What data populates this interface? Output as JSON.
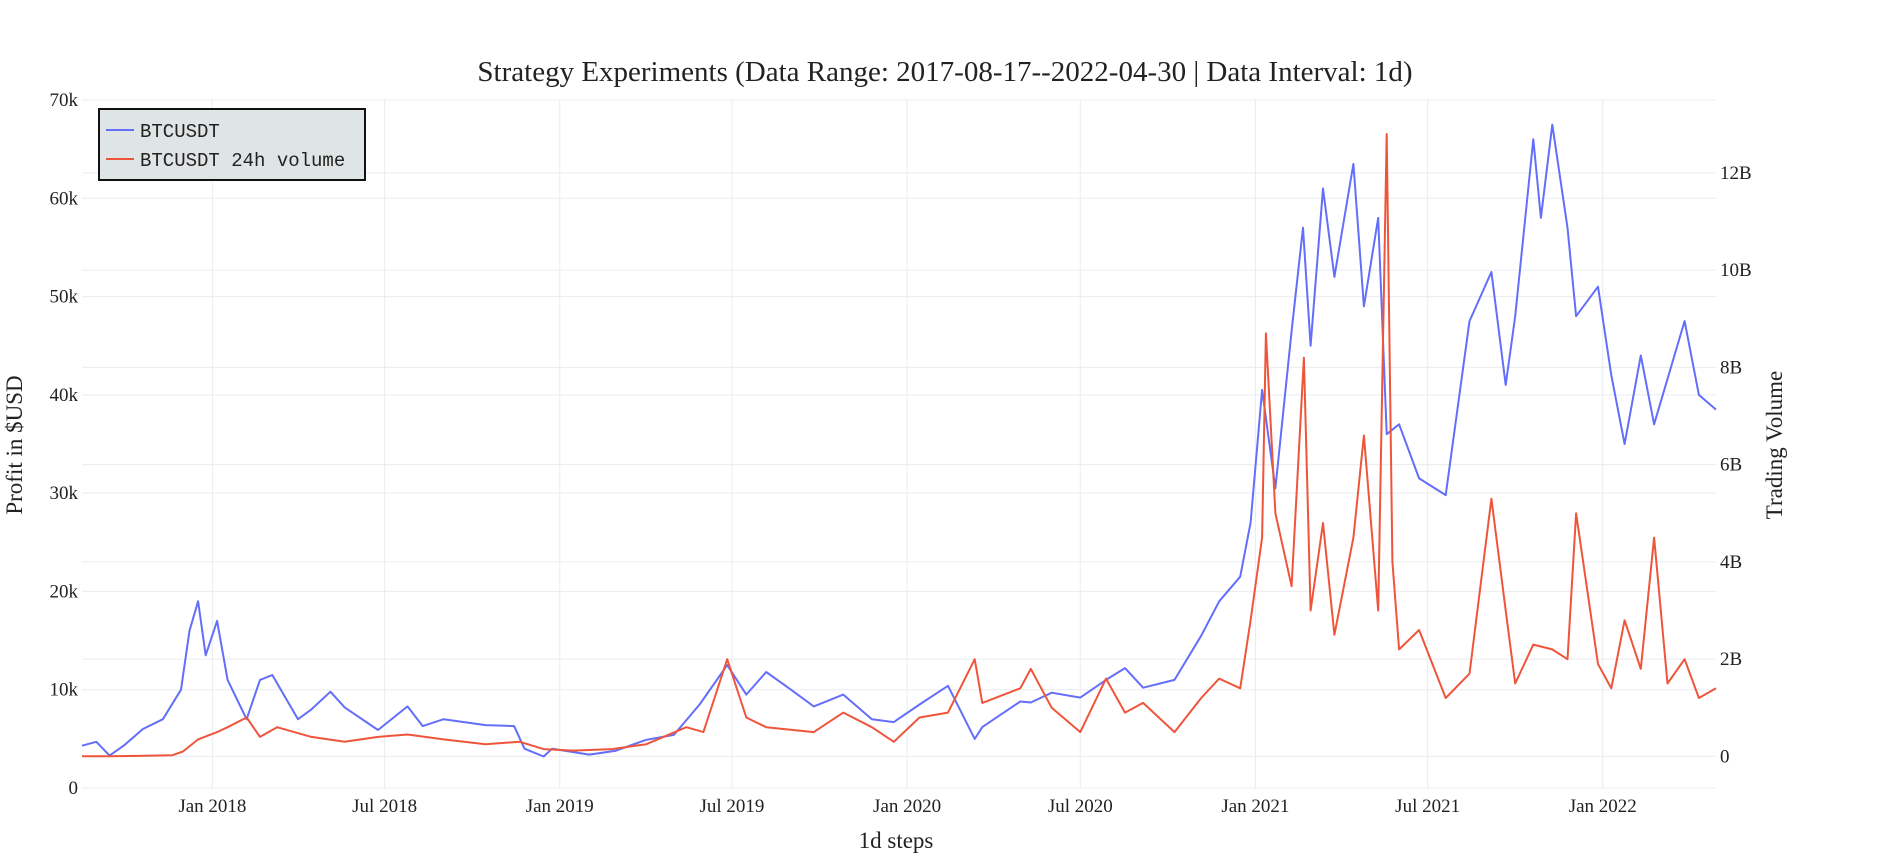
{
  "chart_data": {
    "type": "line",
    "title": "Strategy Experiments (Data Range: 2017-08-17--2022-04-30 | Data Interval: 1d)",
    "xlabel": "1d steps",
    "ylabel": "Profit in $USD",
    "y2label": "Trading Volume",
    "xlim": [
      "2017-08-17",
      "2022-04-30"
    ],
    "ylim": [
      0,
      70000
    ],
    "y2lim": [
      -650000000,
      13500000000
    ],
    "grid": true,
    "legend_position": "top-left",
    "x_ticks": [
      {
        "date": "2018-01-01",
        "label": "Jan 2018"
      },
      {
        "date": "2018-07-01",
        "label": "Jul 2018"
      },
      {
        "date": "2019-01-01",
        "label": "Jan 2019"
      },
      {
        "date": "2019-07-01",
        "label": "Jul 2019"
      },
      {
        "date": "2020-01-01",
        "label": "Jan 2020"
      },
      {
        "date": "2020-07-01",
        "label": "Jul 2020"
      },
      {
        "date": "2021-01-01",
        "label": "Jan 2021"
      },
      {
        "date": "2021-07-01",
        "label": "Jul 2021"
      },
      {
        "date": "2022-01-01",
        "label": "Jan 2022"
      }
    ],
    "y_ticks": [
      {
        "value": 0,
        "label": "0"
      },
      {
        "value": 10000,
        "label": "10k"
      },
      {
        "value": 20000,
        "label": "20k"
      },
      {
        "value": 30000,
        "label": "30k"
      },
      {
        "value": 40000,
        "label": "40k"
      },
      {
        "value": 50000,
        "label": "50k"
      },
      {
        "value": 60000,
        "label": "60k"
      },
      {
        "value": 70000,
        "label": "70k"
      }
    ],
    "y2_ticks": [
      {
        "value": 0,
        "label": "0"
      },
      {
        "value": 2000000000,
        "label": "2B"
      },
      {
        "value": 4000000000,
        "label": "4B"
      },
      {
        "value": 6000000000,
        "label": "6B"
      },
      {
        "value": 8000000000,
        "label": "8B"
      },
      {
        "value": 10000000000,
        "label": "10B"
      },
      {
        "value": 12000000000,
        "label": "12B"
      }
    ],
    "series": [
      {
        "name": "BTCUSDT",
        "axis": "left",
        "color": "#636efa",
        "points": [
          [
            "2017-08-17",
            4300
          ],
          [
            "2017-09-01",
            4700
          ],
          [
            "2017-09-15",
            3300
          ],
          [
            "2017-10-01",
            4400
          ],
          [
            "2017-10-20",
            6000
          ],
          [
            "2017-11-10",
            7000
          ],
          [
            "2017-11-29",
            10000
          ],
          [
            "2017-12-08",
            16000
          ],
          [
            "2017-12-17",
            19000
          ],
          [
            "2017-12-25",
            13500
          ],
          [
            "2018-01-06",
            17000
          ],
          [
            "2018-01-17",
            11000
          ],
          [
            "2018-02-06",
            7000
          ],
          [
            "2018-02-20",
            11000
          ],
          [
            "2018-03-05",
            11500
          ],
          [
            "2018-04-01",
            7000
          ],
          [
            "2018-04-15",
            8000
          ],
          [
            "2018-05-05",
            9800
          ],
          [
            "2018-05-20",
            8200
          ],
          [
            "2018-06-24",
            5900
          ],
          [
            "2018-07-25",
            8300
          ],
          [
            "2018-08-10",
            6300
          ],
          [
            "2018-09-01",
            7000
          ],
          [
            "2018-10-15",
            6400
          ],
          [
            "2018-11-14",
            6300
          ],
          [
            "2018-11-25",
            4000
          ],
          [
            "2018-12-15",
            3200
          ],
          [
            "2018-12-24",
            4000
          ],
          [
            "2019-02-01",
            3400
          ],
          [
            "2019-03-01",
            3800
          ],
          [
            "2019-04-02",
            4900
          ],
          [
            "2019-05-01",
            5400
          ],
          [
            "2019-05-28",
            8500
          ],
          [
            "2019-06-26",
            12500
          ],
          [
            "2019-07-16",
            9500
          ],
          [
            "2019-08-06",
            11800
          ],
          [
            "2019-09-01",
            10000
          ],
          [
            "2019-09-25",
            8300
          ],
          [
            "2019-10-26",
            9500
          ],
          [
            "2019-11-25",
            7000
          ],
          [
            "2019-12-18",
            6700
          ],
          [
            "2020-01-14",
            8500
          ],
          [
            "2020-02-13",
            10400
          ],
          [
            "2020-03-12",
            5000
          ],
          [
            "2020-03-20",
            6200
          ],
          [
            "2020-04-29",
            8800
          ],
          [
            "2020-05-10",
            8700
          ],
          [
            "2020-06-01",
            9700
          ],
          [
            "2020-07-01",
            9200
          ],
          [
            "2020-07-28",
            11000
          ],
          [
            "2020-08-17",
            12200
          ],
          [
            "2020-09-05",
            10200
          ],
          [
            "2020-10-08",
            11000
          ],
          [
            "2020-11-05",
            15500
          ],
          [
            "2020-11-24",
            19000
          ],
          [
            "2020-12-16",
            21500
          ],
          [
            "2020-12-27",
            27000
          ],
          [
            "2021-01-08",
            40500
          ],
          [
            "2021-01-22",
            30500
          ],
          [
            "2021-02-08",
            46500
          ],
          [
            "2021-02-20",
            57000
          ],
          [
            "2021-02-28",
            45000
          ],
          [
            "2021-03-13",
            61000
          ],
          [
            "2021-03-25",
            52000
          ],
          [
            "2021-04-14",
            63500
          ],
          [
            "2021-04-25",
            49000
          ],
          [
            "2021-05-10",
            58000
          ],
          [
            "2021-05-19",
            36000
          ],
          [
            "2021-06-01",
            37000
          ],
          [
            "2021-06-22",
            31500
          ],
          [
            "2021-07-20",
            29800
          ],
          [
            "2021-08-14",
            47500
          ],
          [
            "2021-09-06",
            52500
          ],
          [
            "2021-09-21",
            41000
          ],
          [
            "2021-10-01",
            48000
          ],
          [
            "2021-10-20",
            66000
          ],
          [
            "2021-10-28",
            58000
          ],
          [
            "2021-11-09",
            67500
          ],
          [
            "2021-11-25",
            57000
          ],
          [
            "2021-12-04",
            48000
          ],
          [
            "2021-12-27",
            51000
          ],
          [
            "2022-01-10",
            42000
          ],
          [
            "2022-01-24",
            35000
          ],
          [
            "2022-02-10",
            44000
          ],
          [
            "2022-02-24",
            37000
          ],
          [
            "2022-03-28",
            47500
          ],
          [
            "2022-04-12",
            40000
          ],
          [
            "2022-04-30",
            38500
          ]
        ]
      },
      {
        "name": "BTCUSDT 24h volume",
        "axis": "right",
        "color": "#ef553b",
        "points": [
          [
            "2017-08-17",
            5000000
          ],
          [
            "2017-09-15",
            5000000
          ],
          [
            "2017-10-15",
            10000000
          ],
          [
            "2017-11-20",
            25000000
          ],
          [
            "2017-12-01",
            100000000
          ],
          [
            "2017-12-17",
            350000000
          ],
          [
            "2018-01-06",
            500000000
          ],
          [
            "2018-01-17",
            600000000
          ],
          [
            "2018-02-06",
            800000000
          ],
          [
            "2018-02-20",
            400000000
          ],
          [
            "2018-03-10",
            600000000
          ],
          [
            "2018-04-15",
            400000000
          ],
          [
            "2018-05-20",
            300000000
          ],
          [
            "2018-06-24",
            400000000
          ],
          [
            "2018-07-25",
            450000000
          ],
          [
            "2018-09-01",
            350000000
          ],
          [
            "2018-10-15",
            250000000
          ],
          [
            "2018-11-20",
            300000000
          ],
          [
            "2018-12-15",
            150000000
          ],
          [
            "2019-01-15",
            120000000
          ],
          [
            "2019-02-25",
            150000000
          ],
          [
            "2019-04-02",
            250000000
          ],
          [
            "2019-05-14",
            600000000
          ],
          [
            "2019-06-01",
            500000000
          ],
          [
            "2019-06-26",
            2000000000
          ],
          [
            "2019-07-16",
            800000000
          ],
          [
            "2019-08-06",
            600000000
          ],
          [
            "2019-09-25",
            500000000
          ],
          [
            "2019-10-26",
            900000000
          ],
          [
            "2019-11-25",
            600000000
          ],
          [
            "2019-12-18",
            300000000
          ],
          [
            "2020-01-14",
            800000000
          ],
          [
            "2020-02-13",
            900000000
          ],
          [
            "2020-03-12",
            2000000000
          ],
          [
            "2020-03-20",
            1100000000
          ],
          [
            "2020-04-29",
            1400000000
          ],
          [
            "2020-05-10",
            1800000000
          ],
          [
            "2020-06-01",
            1000000000
          ],
          [
            "2020-07-01",
            500000000
          ],
          [
            "2020-07-28",
            1600000000
          ],
          [
            "2020-08-17",
            900000000
          ],
          [
            "2020-09-05",
            1100000000
          ],
          [
            "2020-10-08",
            500000000
          ],
          [
            "2020-11-05",
            1200000000
          ],
          [
            "2020-11-24",
            1600000000
          ],
          [
            "2020-12-16",
            1400000000
          ],
          [
            "2020-12-27",
            2800000000
          ],
          [
            "2021-01-08",
            4500000000
          ],
          [
            "2021-01-12",
            8700000000
          ],
          [
            "2021-01-22",
            5000000000
          ],
          [
            "2021-02-08",
            3500000000
          ],
          [
            "2021-02-21",
            8200000000
          ],
          [
            "2021-02-28",
            3000000000
          ],
          [
            "2021-03-13",
            4800000000
          ],
          [
            "2021-03-25",
            2500000000
          ],
          [
            "2021-04-14",
            4500000000
          ],
          [
            "2021-04-25",
            6600000000
          ],
          [
            "2021-05-10",
            3000000000
          ],
          [
            "2021-05-19",
            12800000000
          ],
          [
            "2021-05-25",
            4000000000
          ],
          [
            "2021-06-01",
            2200000000
          ],
          [
            "2021-06-22",
            2600000000
          ],
          [
            "2021-07-20",
            1200000000
          ],
          [
            "2021-08-14",
            1700000000
          ],
          [
            "2021-09-06",
            5300000000
          ],
          [
            "2021-09-21",
            3000000000
          ],
          [
            "2021-10-01",
            1500000000
          ],
          [
            "2021-10-20",
            2300000000
          ],
          [
            "2021-11-09",
            2200000000
          ],
          [
            "2021-11-25",
            2000000000
          ],
          [
            "2021-12-04",
            5000000000
          ],
          [
            "2021-12-27",
            1900000000
          ],
          [
            "2022-01-10",
            1400000000
          ],
          [
            "2022-01-24",
            2800000000
          ],
          [
            "2022-02-10",
            1800000000
          ],
          [
            "2022-02-24",
            4500000000
          ],
          [
            "2022-03-10",
            1500000000
          ],
          [
            "2022-03-28",
            2000000000
          ],
          [
            "2022-04-12",
            1200000000
          ],
          [
            "2022-04-30",
            1400000000
          ]
        ]
      }
    ]
  }
}
